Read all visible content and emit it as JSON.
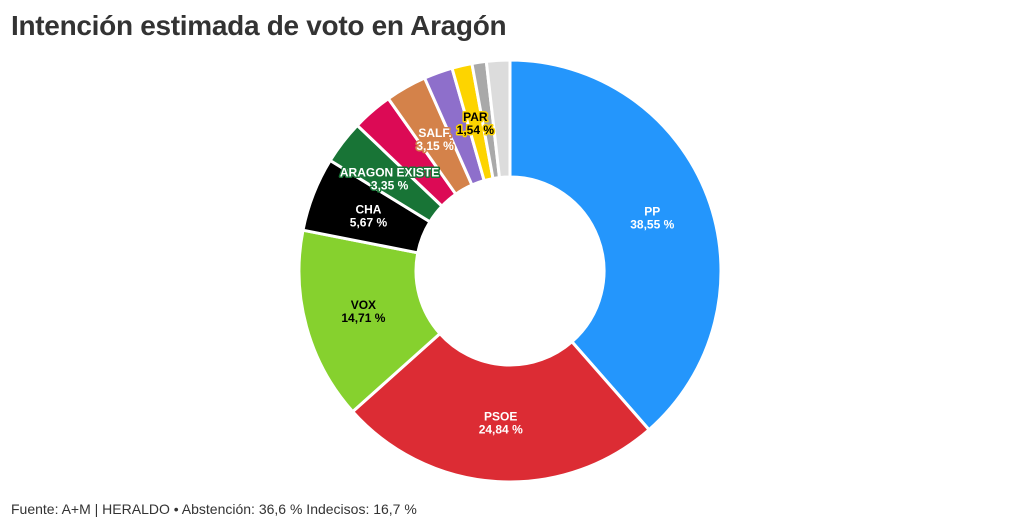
{
  "title": "Intención estimada de voto en Aragón",
  "footer": "Fuente: A+M | HERALDO • Abstención: 36,6 % Indecisos: 16,7 %",
  "chart_data": {
    "type": "pie",
    "donut": true,
    "title": "Intención estimada de voto en Aragón",
    "slices": [
      {
        "name": "PP",
        "value": 38.55,
        "label": "38,55 %",
        "color": "#2496fc",
        "text_color": "#ffffff"
      },
      {
        "name": "PSOE",
        "value": 24.84,
        "label": "24,84 %",
        "color": "#dc2c34",
        "text_color": "#ffffff"
      },
      {
        "name": "VOX",
        "value": 14.71,
        "label": "14,71 %",
        "color": "#86d12e",
        "text_color": "#000000"
      },
      {
        "name": "CHA",
        "value": 5.67,
        "label": "5,67 %",
        "color": "#000000",
        "text_color": "#ffffff"
      },
      {
        "name": "ARAGON EXISTE",
        "value": 3.35,
        "label": "3,35 %",
        "color": "#187436",
        "text_color": "#ffffff"
      },
      {
        "name": "",
        "value": 3.1,
        "label": "",
        "color": "#dc0a55",
        "text_color": "#ffffff"
      },
      {
        "name": "SALF.",
        "value": 3.15,
        "label": "3,15 %",
        "color": "#d4824a",
        "text_color": "#ffffff"
      },
      {
        "name": "",
        "value": 2.2,
        "label": "",
        "color": "#8e6fcb",
        "text_color": "#ffffff"
      },
      {
        "name": "PAR",
        "value": 1.54,
        "label": "1,54 %",
        "color": "#fdd400",
        "text_color": "#000000"
      },
      {
        "name": "",
        "value": 1.1,
        "label": "",
        "color": "#a9a9a9",
        "text_color": "#000000"
      },
      {
        "name": "",
        "value": 1.79,
        "label": "",
        "color": "#dcdcdc",
        "text_color": "#000000"
      }
    ]
  }
}
